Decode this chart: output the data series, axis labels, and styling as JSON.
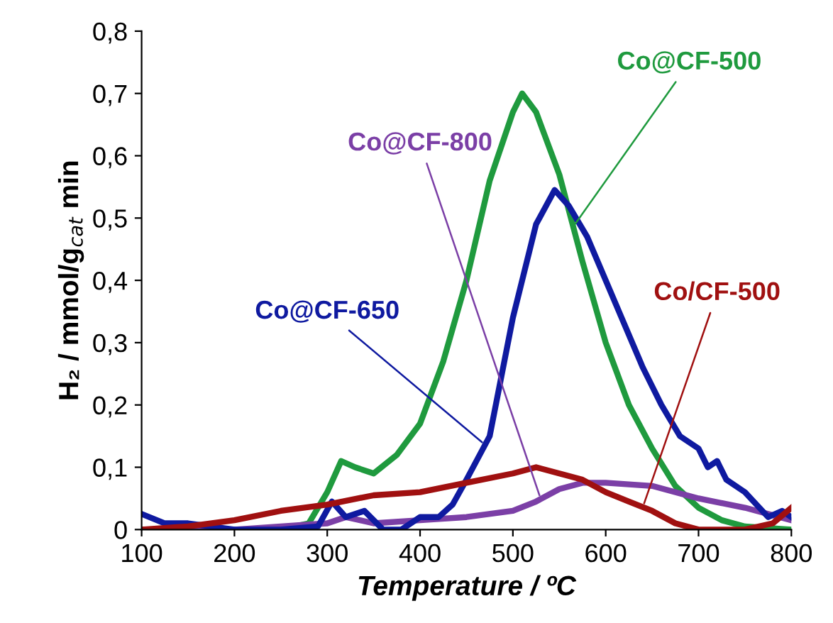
{
  "chart_data": {
    "type": "line",
    "xlabel": "Temperature / ºC",
    "ylabel": "H₂ / mmol/g$_{cat}$ min",
    "xlim": [
      100,
      800
    ],
    "xticks": [
      100,
      200,
      300,
      400,
      500,
      600,
      700,
      800
    ],
    "ylim": [
      0,
      0.8
    ],
    "yticks": [
      {
        "value": 0,
        "label": "0"
      },
      {
        "value": 0.1,
        "label": "0,1"
      },
      {
        "value": 0.2,
        "label": "0,2"
      },
      {
        "value": 0.3,
        "label": "0,3"
      },
      {
        "value": 0.4,
        "label": "0,4"
      },
      {
        "value": 0.5,
        "label": "0,5"
      },
      {
        "value": 0.6,
        "label": "0,6"
      },
      {
        "value": 0.7,
        "label": "0,7"
      },
      {
        "value": 0.8,
        "label": "0,8"
      }
    ],
    "grid": false,
    "marker": "none",
    "line_style": "solid",
    "series": [
      {
        "name": "Co@CF-500",
        "color": "#1f9a3e",
        "x": [
          100,
          250,
          280,
          300,
          315,
          330,
          350,
          375,
          400,
          425,
          450,
          475,
          500,
          510,
          525,
          550,
          575,
          600,
          625,
          650,
          675,
          700,
          725,
          750,
          800
        ],
        "values": [
          0,
          0,
          0.01,
          0.06,
          0.11,
          0.1,
          0.09,
          0.12,
          0.17,
          0.27,
          0.4,
          0.56,
          0.67,
          0.7,
          0.67,
          0.57,
          0.43,
          0.3,
          0.2,
          0.13,
          0.07,
          0.035,
          0.015,
          0.005,
          0
        ]
      },
      {
        "name": "Co@CF-800",
        "color": "#7b3fa6",
        "x": [
          100,
          200,
          250,
          300,
          320,
          350,
          400,
          450,
          500,
          525,
          550,
          575,
          600,
          650,
          700,
          750,
          800
        ],
        "values": [
          0,
          0,
          0.005,
          0.01,
          0.02,
          0.01,
          0.015,
          0.02,
          0.03,
          0.045,
          0.065,
          0.075,
          0.075,
          0.07,
          0.05,
          0.035,
          0.015
        ]
      },
      {
        "name": "Co@CF-650",
        "color": "#0f1aa0",
        "x": [
          100,
          125,
          150,
          200,
          250,
          290,
          305,
          320,
          340,
          360,
          380,
          400,
          420,
          435,
          450,
          475,
          500,
          525,
          545,
          560,
          580,
          600,
          620,
          640,
          660,
          680,
          700,
          710,
          720,
          730,
          750,
          775,
          790,
          800
        ],
        "values": [
          0.025,
          0.01,
          0.01,
          0,
          0,
          0.005,
          0.045,
          0.02,
          0.03,
          0,
          0,
          0.02,
          0.02,
          0.04,
          0.08,
          0.15,
          0.34,
          0.49,
          0.545,
          0.52,
          0.47,
          0.4,
          0.33,
          0.26,
          0.2,
          0.15,
          0.13,
          0.1,
          0.11,
          0.08,
          0.06,
          0.02,
          0.03,
          0.02
        ]
      },
      {
        "name": "Co/CF-500",
        "color": "#a01010",
        "x": [
          100,
          150,
          200,
          250,
          300,
          350,
          400,
          450,
          500,
          525,
          550,
          575,
          600,
          625,
          650,
          675,
          700,
          750,
          780,
          800
        ],
        "values": [
          0,
          0.005,
          0.015,
          0.03,
          0.04,
          0.055,
          0.06,
          0.075,
          0.09,
          0.1,
          0.09,
          0.08,
          0.06,
          0.045,
          0.03,
          0.01,
          0,
          0,
          0.01,
          0.035
        ]
      }
    ]
  }
}
